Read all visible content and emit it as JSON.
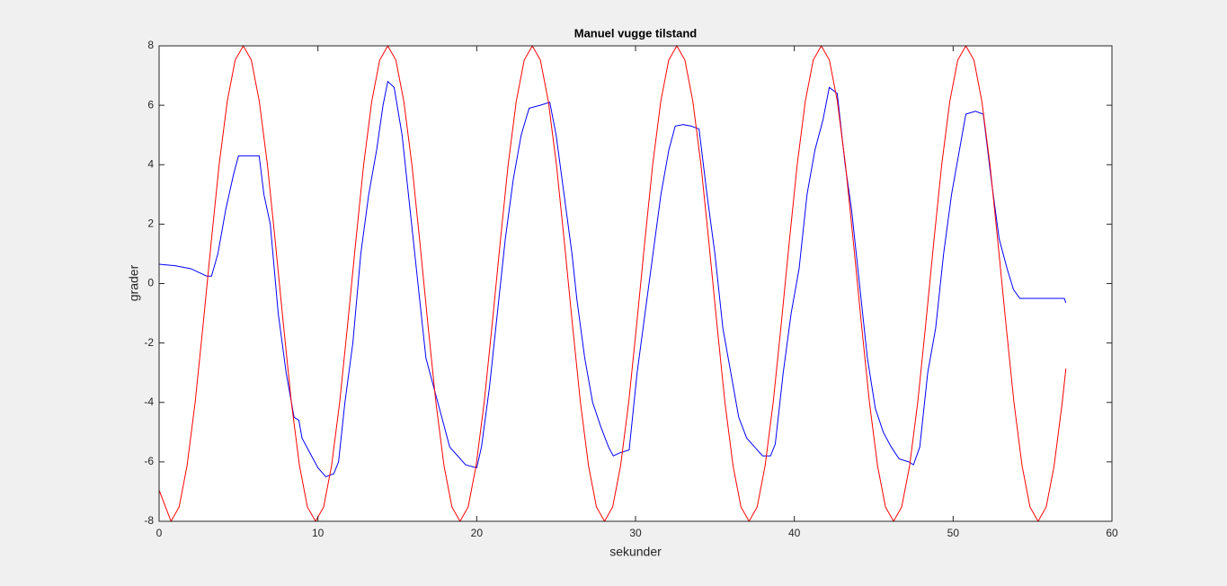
{
  "chart_data": {
    "type": "line",
    "title": "Manuel vugge tilstand",
    "x_label": "sekunder",
    "y_label": "grader",
    "xlim": [
      0,
      60
    ],
    "ylim": [
      -8,
      8
    ],
    "xticks": [
      0,
      10,
      20,
      30,
      40,
      50,
      60
    ],
    "yticks": [
      -8,
      -6,
      -4,
      -2,
      0,
      2,
      4,
      6,
      8
    ],
    "series": [
      {
        "color": "#0000ff",
        "x": [
          0,
          1,
          2,
          3,
          3.3,
          3.7,
          4.2,
          4.7,
          5.0,
          5.5,
          6.3,
          6.6,
          7.0,
          7.5,
          8.0,
          8.5,
          8.8,
          9.0,
          9.5,
          10,
          10.5,
          11,
          11.3,
          11.7,
          12.2,
          12.7,
          13.2,
          13.7,
          14.1,
          14.4,
          14.8,
          15.3,
          15.8,
          16.3,
          16.8,
          17.3,
          17.8,
          18.3,
          18.8,
          19.3,
          20.0,
          20.3,
          20.8,
          21.3,
          21.8,
          22.3,
          22.8,
          23.3,
          24,
          24.6,
          25.0,
          25.5,
          26.0,
          26.3,
          26.8,
          27.3,
          27.8,
          28.3,
          28.6,
          29,
          29.6,
          30.1,
          30.6,
          31.1,
          31.6,
          32.1,
          32.5,
          33,
          33.5,
          34.0,
          34.5,
          35,
          35.5,
          36,
          36.5,
          37,
          37.5,
          38,
          38.5,
          38.8,
          39.3,
          39.8,
          40.3,
          40.8,
          41.3,
          41.8,
          42.2,
          42.7,
          43.2,
          43.6,
          44.1,
          44.6,
          45.1,
          45.6,
          46.1,
          46.6,
          47.2,
          47.5,
          47.9,
          48.4,
          48.9,
          49.4,
          49.9,
          50.4,
          50.8,
          51.4,
          51.9,
          52.4,
          52.9,
          53.4,
          53.8,
          54.2,
          55,
          56,
          57,
          57.1
        ],
        "values": [
          0.65,
          0.6,
          0.5,
          0.25,
          0.25,
          1.0,
          2.5,
          3.7,
          4.3,
          4.3,
          4.3,
          3.0,
          2.0,
          -1,
          -3,
          -4.5,
          -4.6,
          -5.2,
          -5.7,
          -6.2,
          -6.5,
          -6.4,
          -6,
          -4,
          -2,
          1,
          3,
          4.5,
          6,
          6.8,
          6.6,
          5,
          2.5,
          0,
          -2.5,
          -3.5,
          -4.5,
          -5.5,
          -5.8,
          -6.1,
          -6.2,
          -5.5,
          -3.5,
          -1,
          1.5,
          3.5,
          5,
          5.9,
          6.0,
          6.1,
          5,
          3,
          1,
          -0.5,
          -2.5,
          -4,
          -4.8,
          -5.5,
          -5.8,
          -5.7,
          -5.6,
          -3,
          -1,
          1,
          3,
          4.5,
          5.3,
          5.35,
          5.3,
          5.2,
          3,
          1,
          -1.5,
          -3,
          -4.5,
          -5.2,
          -5.5,
          -5.8,
          -5.8,
          -5.4,
          -3,
          -1,
          0.5,
          3,
          4.5,
          5.5,
          6.6,
          6.4,
          4,
          2.5,
          0,
          -2.5,
          -4.2,
          -5,
          -5.5,
          -5.9,
          -6.0,
          -6.1,
          -5.5,
          -3,
          -1.5,
          1,
          3,
          4.5,
          5.7,
          5.8,
          5.7,
          3.5,
          1.5,
          0.5,
          -0.2,
          -0.5,
          -0.5,
          -0.5,
          -0.5,
          -0.65
        ]
      },
      {
        "color": "#ff0000",
        "x": [
          0,
          0.75,
          1.26,
          1.76,
          2.27,
          2.77,
          3.28,
          3.78,
          4.29,
          4.79,
          5.3,
          5.81,
          6.31,
          6.82,
          7.32,
          7.83,
          8.33,
          8.84,
          9.34,
          9.85,
          10.36,
          10.86,
          11.37,
          11.87,
          12.38,
          12.88,
          13.39,
          13.89,
          14.4,
          14.91,
          15.41,
          15.92,
          16.42,
          16.93,
          17.43,
          17.94,
          18.44,
          18.95,
          19.46,
          19.96,
          20.47,
          20.97,
          21.48,
          21.98,
          22.49,
          22.99,
          23.5,
          24.01,
          24.51,
          25.02,
          25.52,
          26.03,
          26.53,
          27.04,
          27.54,
          28.05,
          28.56,
          29.06,
          29.57,
          30.07,
          30.58,
          31.08,
          31.59,
          32.09,
          32.6,
          33.11,
          33.61,
          34.12,
          34.62,
          35.13,
          35.63,
          36.14,
          36.64,
          37.15,
          37.66,
          38.16,
          38.67,
          39.17,
          39.68,
          40.18,
          40.69,
          41.19,
          41.7,
          42.21,
          42.71,
          43.22,
          43.72,
          44.23,
          44.73,
          45.24,
          45.74,
          46.25,
          46.76,
          47.26,
          47.77,
          48.27,
          48.78,
          49.28,
          49.79,
          50.29,
          50.8,
          51.31,
          51.81,
          52.32,
          52.82,
          53.33,
          53.83,
          54.34,
          54.84,
          55.35,
          55.86,
          56.36,
          56.87,
          57.1
        ],
        "values": [
          -6.95,
          -8,
          -7.52,
          -6.13,
          -4,
          -1.39,
          1.39,
          4,
          6.13,
          7.52,
          8,
          7.52,
          6.13,
          4,
          1.39,
          -1.39,
          -4,
          -6.13,
          -7.52,
          -8,
          -7.52,
          -6.13,
          -4,
          -1.39,
          1.39,
          4,
          6.13,
          7.52,
          8,
          7.52,
          6.13,
          4,
          1.39,
          -1.39,
          -4,
          -6.13,
          -7.52,
          -8,
          -7.52,
          -6.13,
          -4,
          -1.39,
          1.39,
          4,
          6.13,
          7.52,
          8,
          7.52,
          6.13,
          4,
          1.39,
          -1.39,
          -4,
          -6.13,
          -7.52,
          -8,
          -7.52,
          -6.13,
          -4,
          -1.39,
          1.39,
          4,
          6.13,
          7.52,
          8,
          7.52,
          6.13,
          4,
          1.39,
          -1.39,
          -4,
          -6.13,
          -7.52,
          -8,
          -7.52,
          -6.13,
          -4,
          -1.39,
          1.39,
          4,
          6.13,
          7.52,
          8,
          7.52,
          6.13,
          4,
          1.39,
          -1.39,
          -4,
          -6.13,
          -7.52,
          -8,
          -7.52,
          -6.13,
          -4,
          -1.39,
          1.39,
          4,
          6.13,
          7.52,
          8,
          7.52,
          6.13,
          4,
          1.39,
          -1.39,
          -4,
          -6.13,
          -7.52,
          -8,
          -7.52,
          -6.13,
          -4,
          -2.86
        ]
      }
    ]
  }
}
